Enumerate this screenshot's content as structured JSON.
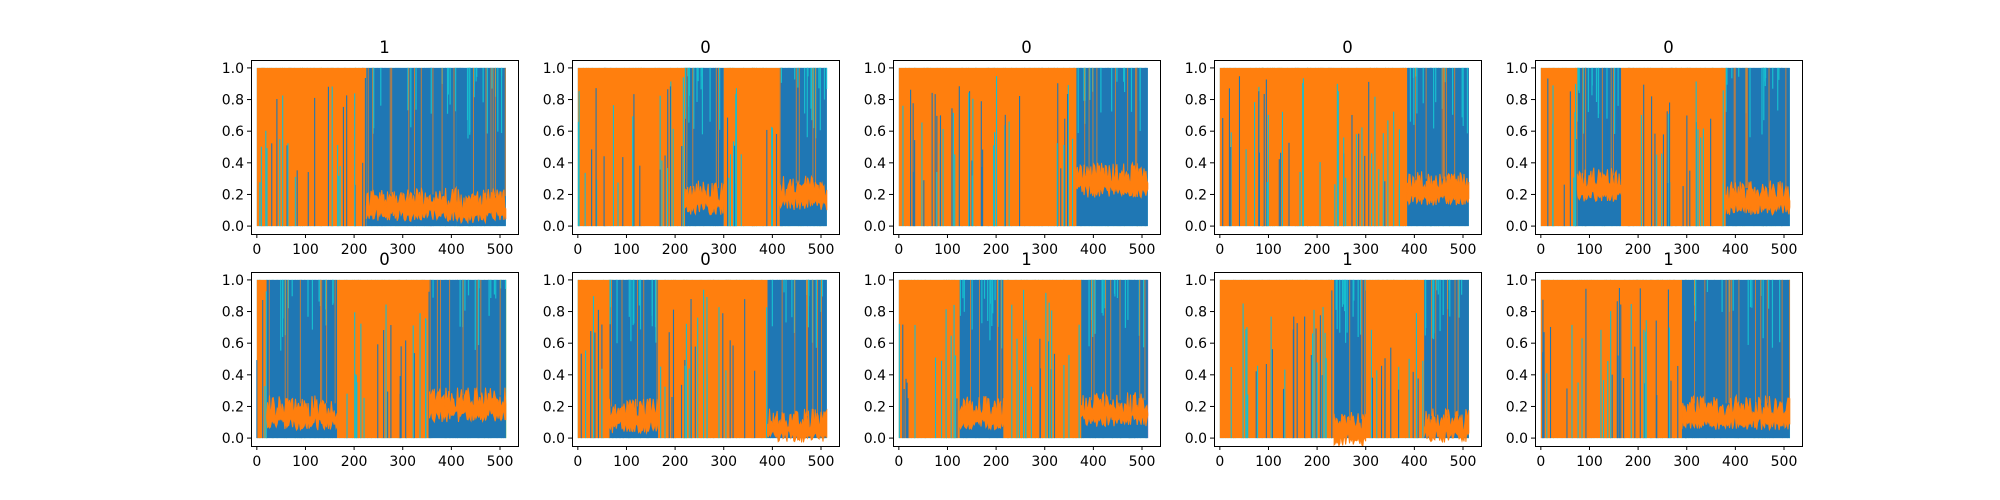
{
  "chart_data": [
    {
      "type": "line",
      "title": "1",
      "xlim": [
        -12,
        537
      ],
      "ylim": [
        -0.05,
        1.05
      ],
      "x_ticks": [
        0,
        100,
        200,
        300,
        400,
        500
      ],
      "y_ticks": [
        0.0,
        0.2,
        0.4,
        0.6,
        0.8,
        1.0
      ],
      "x_tick_labels": [
        "0",
        "100",
        "200",
        "300",
        "400",
        "500"
      ],
      "y_tick_labels": [
        "0.0",
        "0.2",
        "0.4",
        "0.6",
        "0.8",
        "1.0"
      ],
      "series": [
        {
          "color": "#ff7f0e",
          "segments": [
            {
              "x": [
                0,
                225
              ],
              "level": "high"
            },
            {
              "x": [
                225,
                410
              ],
              "level": 0.18
            },
            {
              "x": [
                410,
                512
              ],
              "level": 0.17
            }
          ]
        },
        {
          "color": "#1f77b4",
          "segments": [
            {
              "x": [
                225,
                410
              ],
              "level": "high"
            },
            {
              "x": [
                410,
                512
              ],
              "level": "high"
            }
          ]
        }
      ]
    },
    {
      "type": "line",
      "title": "0",
      "xlim": [
        -12,
        537
      ],
      "ylim": [
        -0.05,
        1.05
      ],
      "x_ticks": [
        0,
        100,
        200,
        300,
        400,
        500
      ],
      "y_ticks": [
        0.0,
        0.2,
        0.4,
        0.6,
        0.8,
        1.0
      ],
      "x_tick_labels": [
        "0",
        "100",
        "200",
        "300",
        "400",
        "500"
      ],
      "y_tick_labels": [
        "0.0",
        "0.2",
        "0.4",
        "0.6",
        "0.8",
        "1.0"
      ],
      "series": [
        {
          "color": "#ff7f0e",
          "segments": [
            {
              "x": [
                0,
                220
              ],
              "level": "high"
            },
            {
              "x": [
                220,
                300
              ],
              "level": 0.22
            },
            {
              "x": [
                300,
                415
              ],
              "level": "high"
            },
            {
              "x": [
                415,
                512
              ],
              "level": 0.25
            }
          ]
        },
        {
          "color": "#1f77b4",
          "segments": [
            {
              "x": [
                220,
                300
              ],
              "level": "high"
            },
            {
              "x": [
                415,
                512
              ],
              "level": "high"
            }
          ]
        }
      ]
    },
    {
      "type": "line",
      "title": "0",
      "xlim": [
        -12,
        537
      ],
      "ylim": [
        -0.05,
        1.05
      ],
      "x_ticks": [
        0,
        100,
        200,
        300,
        400,
        500
      ],
      "y_ticks": [
        0.0,
        0.2,
        0.4,
        0.6,
        0.8,
        1.0
      ],
      "x_tick_labels": [
        "0",
        "100",
        "200",
        "300",
        "400",
        "500"
      ],
      "y_tick_labels": [
        "0.0",
        "0.2",
        "0.4",
        "0.6",
        "0.8",
        "1.0"
      ],
      "series": [
        {
          "color": "#ff7f0e",
          "segments": [
            {
              "x": [
                0,
                365
              ],
              "level": "high"
            },
            {
              "x": [
                365,
                512
              ],
              "level": 0.33
            }
          ]
        },
        {
          "color": "#1f77b4",
          "segments": [
            {
              "x": [
                365,
                512
              ],
              "level": "high"
            }
          ]
        }
      ]
    },
    {
      "type": "line",
      "title": "0",
      "xlim": [
        -12,
        537
      ],
      "ylim": [
        -0.05,
        1.05
      ],
      "x_ticks": [
        0,
        100,
        200,
        300,
        400,
        500
      ],
      "y_ticks": [
        0.0,
        0.2,
        0.4,
        0.6,
        0.8,
        1.0
      ],
      "x_tick_labels": [
        "0",
        "100",
        "200",
        "300",
        "400",
        "500"
      ],
      "y_tick_labels": [
        "0.0",
        "0.2",
        "0.4",
        "0.6",
        "0.8",
        "1.0"
      ],
      "series": [
        {
          "color": "#ff7f0e",
          "segments": [
            {
              "x": [
                0,
                385
              ],
              "level": "high"
            },
            {
              "x": [
                385,
                512
              ],
              "level": 0.28
            }
          ]
        },
        {
          "color": "#1f77b4",
          "segments": [
            {
              "x": [
                385,
                512
              ],
              "level": "high"
            }
          ]
        }
      ]
    },
    {
      "type": "line",
      "title": "0",
      "xlim": [
        -12,
        537
      ],
      "ylim": [
        -0.05,
        1.05
      ],
      "x_ticks": [
        0,
        100,
        200,
        300,
        400,
        500
      ],
      "y_ticks": [
        0.0,
        0.2,
        0.4,
        0.6,
        0.8,
        1.0
      ],
      "x_tick_labels": [
        "0",
        "100",
        "200",
        "300",
        "400",
        "500"
      ],
      "y_tick_labels": [
        "0.0",
        "0.2",
        "0.4",
        "0.6",
        "0.8",
        "1.0"
      ],
      "series": [
        {
          "color": "#ff7f0e",
          "segments": [
            {
              "x": [
                0,
                75
              ],
              "level": "high"
            },
            {
              "x": [
                75,
                165
              ],
              "level": 0.3
            },
            {
              "x": [
                165,
                380
              ],
              "level": "high"
            },
            {
              "x": [
                380,
                512
              ],
              "level": 0.22
            }
          ]
        },
        {
          "color": "#1f77b4",
          "segments": [
            {
              "x": [
                75,
                165
              ],
              "level": "high"
            },
            {
              "x": [
                380,
                512
              ],
              "level": "high"
            }
          ]
        }
      ]
    },
    {
      "type": "line",
      "title": "0",
      "xlim": [
        -12,
        537
      ],
      "ylim": [
        -0.05,
        1.05
      ],
      "x_ticks": [
        0,
        100,
        200,
        300,
        400,
        500
      ],
      "y_ticks": [
        0.0,
        0.2,
        0.4,
        0.6,
        0.8,
        1.0
      ],
      "x_tick_labels": [
        "0",
        "100",
        "200",
        "300",
        "400",
        "500"
      ],
      "y_tick_labels": [
        "0.0",
        "0.2",
        "0.4",
        "0.6",
        "0.8",
        "1.0"
      ],
      "series": [
        {
          "color": "#ff7f0e",
          "segments": [
            {
              "x": [
                0,
                20
              ],
              "level": "high"
            },
            {
              "x": [
                20,
                165
              ],
              "level": 0.2
            },
            {
              "x": [
                165,
                355
              ],
              "level": "high"
            },
            {
              "x": [
                355,
                512
              ],
              "level": 0.25
            }
          ]
        },
        {
          "color": "#1f77b4",
          "segments": [
            {
              "x": [
                20,
                165
              ],
              "level": "high"
            },
            {
              "x": [
                355,
                512
              ],
              "level": "high"
            }
          ]
        }
      ]
    },
    {
      "type": "line",
      "title": "0",
      "xlim": [
        -12,
        537
      ],
      "ylim": [
        -0.05,
        1.05
      ],
      "x_ticks": [
        0,
        100,
        200,
        300,
        400,
        500
      ],
      "y_ticks": [
        0.0,
        0.2,
        0.4,
        0.6,
        0.8,
        1.0
      ],
      "x_tick_labels": [
        "0",
        "100",
        "200",
        "300",
        "400",
        "500"
      ],
      "y_tick_labels": [
        "0.0",
        "0.2",
        "0.4",
        "0.6",
        "0.8",
        "1.0"
      ],
      "series": [
        {
          "color": "#ff7f0e",
          "segments": [
            {
              "x": [
                0,
                65
              ],
              "level": "high"
            },
            {
              "x": [
                65,
                165
              ],
              "level": 0.18
            },
            {
              "x": [
                165,
                390
              ],
              "level": "high"
            },
            {
              "x": [
                390,
                512
              ],
              "level": 0.12
            }
          ]
        },
        {
          "color": "#1f77b4",
          "segments": [
            {
              "x": [
                65,
                165
              ],
              "level": "high"
            },
            {
              "x": [
                390,
                512
              ],
              "level": "high"
            }
          ]
        }
      ]
    },
    {
      "type": "line",
      "title": "1",
      "xlim": [
        -12,
        537
      ],
      "ylim": [
        -0.05,
        1.05
      ],
      "x_ticks": [
        0,
        100,
        200,
        300,
        400,
        500
      ],
      "y_ticks": [
        0.0,
        0.2,
        0.4,
        0.6,
        0.8,
        1.0
      ],
      "x_tick_labels": [
        "0",
        "100",
        "200",
        "300",
        "400",
        "500"
      ],
      "y_tick_labels": [
        "0.0",
        "0.2",
        "0.4",
        "0.6",
        "0.8",
        "1.0"
      ],
      "series": [
        {
          "color": "#ff7f0e",
          "segments": [
            {
              "x": [
                0,
                125
              ],
              "level": "high"
            },
            {
              "x": [
                125,
                215
              ],
              "level": 0.2
            },
            {
              "x": [
                215,
                375
              ],
              "level": "high"
            },
            {
              "x": [
                375,
                512
              ],
              "level": 0.22
            }
          ]
        },
        {
          "color": "#1f77b4",
          "segments": [
            {
              "x": [
                125,
                215
              ],
              "level": "high"
            },
            {
              "x": [
                375,
                512
              ],
              "level": "high"
            }
          ]
        }
      ]
    },
    {
      "type": "line",
      "title": "1",
      "xlim": [
        -12,
        537
      ],
      "ylim": [
        -0.05,
        1.05
      ],
      "x_ticks": [
        0,
        100,
        200,
        300,
        400,
        500
      ],
      "y_ticks": [
        0.0,
        0.2,
        0.4,
        0.6,
        0.8,
        1.0
      ],
      "x_tick_labels": [
        "0",
        "100",
        "200",
        "300",
        "400",
        "500"
      ],
      "y_tick_labels": [
        "0.0",
        "0.2",
        "0.4",
        "0.6",
        "0.8",
        "1.0"
      ],
      "series": [
        {
          "color": "#ff7f0e",
          "segments": [
            {
              "x": [
                0,
                235
              ],
              "level": "high"
            },
            {
              "x": [
                235,
                300
              ],
              "level": 0.1
            },
            {
              "x": [
                300,
                420
              ],
              "level": "high"
            },
            {
              "x": [
                420,
                512
              ],
              "level": 0.12
            }
          ]
        },
        {
          "color": "#1f77b4",
          "segments": [
            {
              "x": [
                235,
                300
              ],
              "level": "high"
            },
            {
              "x": [
                420,
                512
              ],
              "level": "high"
            }
          ]
        }
      ]
    },
    {
      "type": "line",
      "title": "1",
      "xlim": [
        -12,
        537
      ],
      "ylim": [
        -0.05,
        1.05
      ],
      "x_ticks": [
        0,
        100,
        200,
        300,
        400,
        500
      ],
      "y_ticks": [
        0.0,
        0.2,
        0.4,
        0.6,
        0.8,
        1.0
      ],
      "x_tick_labels": [
        "0",
        "100",
        "200",
        "300",
        "400",
        "500"
      ],
      "y_tick_labels": [
        "0.0",
        "0.2",
        "0.4",
        "0.6",
        "0.8",
        "1.0"
      ],
      "series": [
        {
          "color": "#ff7f0e",
          "segments": [
            {
              "x": [
                0,
                290
              ],
              "level": "high"
            },
            {
              "x": [
                290,
                512
              ],
              "level": 0.2
            }
          ]
        },
        {
          "color": "#1f77b4",
          "segments": [
            {
              "x": [
                290,
                512
              ],
              "level": "high"
            }
          ]
        }
      ]
    }
  ]
}
